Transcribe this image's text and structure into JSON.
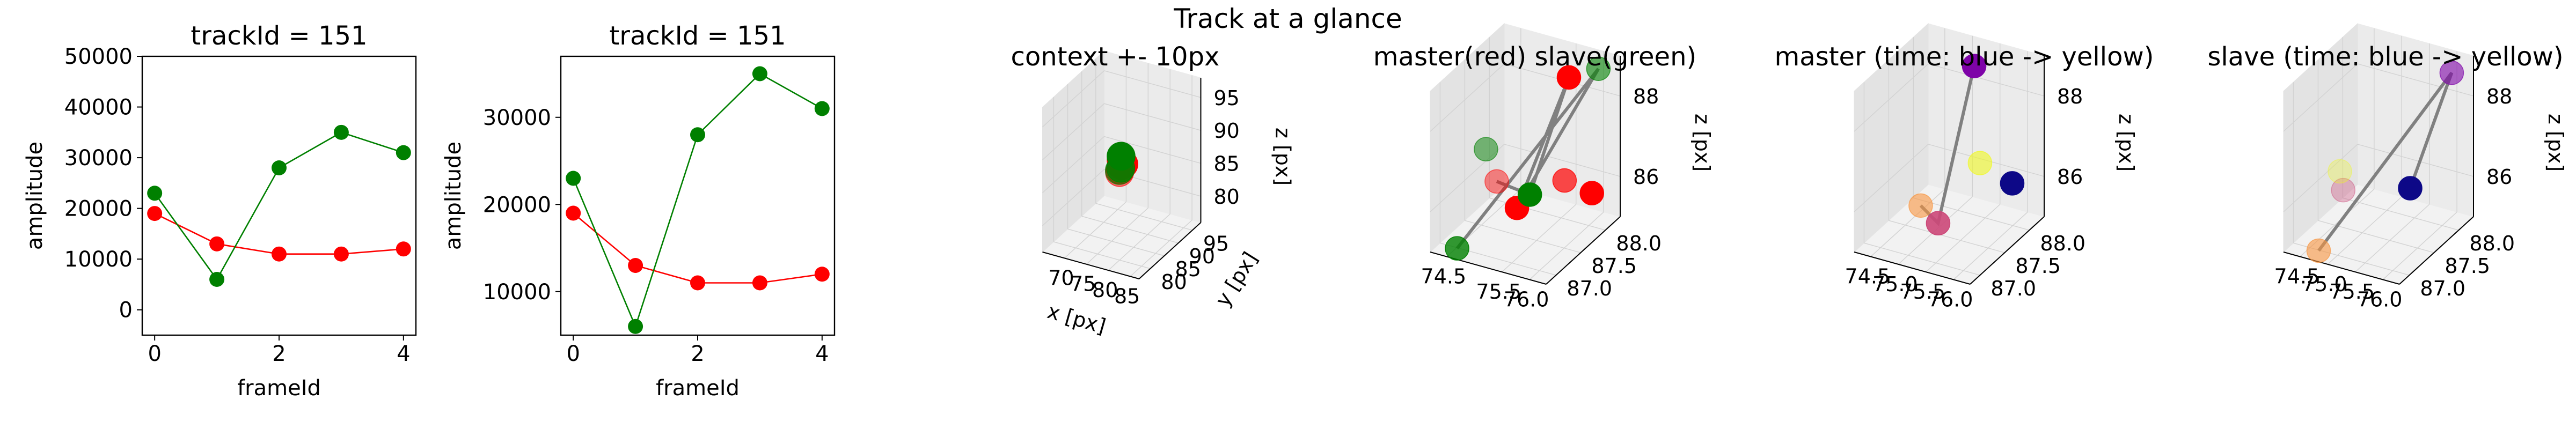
{
  "figure": {
    "suptitle": "Track at a glance"
  },
  "colors": {
    "master": "#ff0000",
    "slave": "#008000",
    "connector": "#808080",
    "pane": "#f2f2f2",
    "grid": "#d9d9d9"
  },
  "chart_data": [
    {
      "type": "line",
      "title": "trackId = 151",
      "xlabel": "frameId",
      "ylabel": "amplitude",
      "x": [
        0,
        1,
        2,
        3,
        4
      ],
      "xlim": [
        -0.2,
        4.2
      ],
      "ylim": [
        -5000,
        50000
      ],
      "xticks": [
        "0",
        "2",
        "4"
      ],
      "yticks": [
        "0",
        "10000",
        "20000",
        "30000",
        "40000",
        "50000"
      ],
      "series": [
        {
          "color": "#ff0000",
          "values": [
            19000,
            13000,
            11000,
            11000,
            12000
          ]
        },
        {
          "color": "#008000",
          "values": [
            23000,
            6000,
            28000,
            35000,
            31000
          ]
        }
      ]
    },
    {
      "type": "line",
      "title": "trackId = 151",
      "xlabel": "frameId",
      "ylabel": "amplitude",
      "x": [
        0,
        1,
        2,
        3,
        4
      ],
      "xlim": [
        -0.2,
        4.2
      ],
      "ylim": [
        5000,
        37000
      ],
      "xticks": [
        "0",
        "2",
        "4"
      ],
      "yticks": [
        "10000",
        "20000",
        "30000"
      ],
      "series": [
        {
          "color": "#ff0000",
          "values": [
            19000,
            13000,
            11000,
            11000,
            12000
          ]
        },
        {
          "color": "#008000",
          "values": [
            23000,
            6000,
            28000,
            35000,
            31000
          ]
        }
      ]
    },
    {
      "type": "scatter",
      "projection": "3d",
      "title": "context +- 10px",
      "xlabel": "x [px]",
      "ylabel": "y [px]",
      "zlabel": "z [px]",
      "xlim": [
        65,
        87
      ],
      "ylim": [
        76,
        98
      ],
      "zlim": [
        76,
        98
      ],
      "xticks": [
        70,
        75,
        80,
        85
      ],
      "yticks": [
        80,
        85,
        90,
        95
      ],
      "zticks": [
        80,
        85,
        90,
        95
      ],
      "points": [
        {
          "x": 76.2,
          "y": 86.5,
          "z": 88.0,
          "color": "#ff0000",
          "alpha": 1.0
        },
        {
          "x": 76.5,
          "y": 87.0,
          "z": 87.2,
          "color": "#ff0000",
          "alpha": 1.0
        },
        {
          "x": 75.8,
          "y": 87.2,
          "z": 86.8,
          "color": "#ff0000",
          "alpha": 0.85
        },
        {
          "x": 75.5,
          "y": 87.3,
          "z": 86.0,
          "color": "#ff0000",
          "alpha": 0.7
        },
        {
          "x": 75.2,
          "y": 87.5,
          "z": 85.5,
          "color": "#ff0000",
          "alpha": 0.55
        },
        {
          "x": 76.0,
          "y": 86.8,
          "z": 88.4,
          "color": "#008000",
          "alpha": 1.0
        },
        {
          "x": 75.6,
          "y": 87.3,
          "z": 86.3,
          "color": "#008000",
          "alpha": 0.8
        },
        {
          "x": 74.9,
          "y": 87.9,
          "z": 85.6,
          "color": "#008000",
          "alpha": 0.6
        }
      ],
      "path": []
    },
    {
      "type": "scatter",
      "projection": "3d",
      "title": "master(red) slave(green)",
      "zlabel": "z [px]",
      "xlim": [
        74.2,
        76.3
      ],
      "ylim": [
        86.8,
        88.3
      ],
      "zlim": [
        85.0,
        89.0
      ],
      "xticks": [
        74.5,
        75.5,
        76.0
      ],
      "xticklabels": [
        "74.5",
        "75.5",
        "76.0"
      ],
      "yticks": [
        87.0,
        87.5,
        88.0
      ],
      "yticklabels": [
        "87.0",
        "87.5",
        "88.0"
      ],
      "zticks": [
        86,
        88
      ],
      "zticklabels": [
        "86",
        "88"
      ],
      "points": [
        {
          "x": 75.55,
          "y": 88.1,
          "z": 88.4,
          "color": "#ff0000",
          "alpha": 1.0
        },
        {
          "x": 76.1,
          "y": 87.95,
          "z": 85.9,
          "color": "#ff0000",
          "alpha": 1.0
        },
        {
          "x": 75.65,
          "y": 87.9,
          "z": 86.1,
          "color": "#ff0000",
          "alpha": 0.7
        },
        {
          "x": 75.1,
          "y": 87.55,
          "z": 85.6,
          "color": "#ff0000",
          "alpha": 1.0
        },
        {
          "x": 74.6,
          "y": 87.7,
          "z": 85.9,
          "color": "#ff0000",
          "alpha": 0.45
        },
        {
          "x": 75.95,
          "y": 88.25,
          "z": 88.6,
          "color": "#008000",
          "alpha": 0.6
        },
        {
          "x": 75.2,
          "y": 87.7,
          "z": 85.8,
          "color": "#008000",
          "alpha": 1.0
        },
        {
          "x": 74.45,
          "y": 87.65,
          "z": 86.7,
          "color": "#008000",
          "alpha": 0.5
        },
        {
          "x": 74.15,
          "y": 87.4,
          "z": 84.4,
          "color": "#008000",
          "alpha": 0.8
        }
      ],
      "path": [
        {
          "x": 74.6,
          "y": 87.7,
          "z": 85.9
        },
        {
          "x": 75.2,
          "y": 87.7,
          "z": 85.8
        },
        {
          "x": 75.55,
          "y": 88.1,
          "z": 88.4
        },
        {
          "x": 75.1,
          "y": 87.55,
          "z": 85.6
        },
        {
          "x": 75.95,
          "y": 88.25,
          "z": 88.6
        },
        {
          "x": 74.15,
          "y": 87.4,
          "z": 84.4
        }
      ]
    },
    {
      "type": "scatter",
      "projection": "3d",
      "title": "master (time: blue -> yellow)",
      "zlabel": "z [px]",
      "xlim": [
        74.2,
        76.3
      ],
      "ylim": [
        86.8,
        88.3
      ],
      "zlim": [
        85.0,
        89.0
      ],
      "xticks": [
        74.5,
        75.0,
        75.5,
        76.0
      ],
      "xticklabels": [
        "74.5",
        "75.0",
        "75.5",
        "76.0"
      ],
      "yticks": [
        87.0,
        87.5,
        88.0
      ],
      "yticklabels": [
        "87.0",
        "87.5",
        "88.0"
      ],
      "zticks": [
        86,
        88
      ],
      "zticklabels": [
        "86",
        "88"
      ],
      "points": [
        {
          "x": 75.9,
          "y": 88.1,
          "z": 85.9,
          "color": "#0d0887",
          "alpha": 1.0
        },
        {
          "x": 75.3,
          "y": 88.0,
          "z": 88.7,
          "color": "#7e03a8",
          "alpha": 1.0
        },
        {
          "x": 75.05,
          "y": 87.55,
          "z": 85.2,
          "color": "#cc4778",
          "alpha": 0.9
        },
        {
          "x": 74.6,
          "y": 87.7,
          "z": 85.3,
          "color": "#f89540",
          "alpha": 0.6
        },
        {
          "x": 75.45,
          "y": 87.95,
          "z": 86.4,
          "color": "#f0f921",
          "alpha": 0.6
        }
      ],
      "path": [
        {
          "x": 74.6,
          "y": 87.7,
          "z": 85.3
        },
        {
          "x": 75.05,
          "y": 87.55,
          "z": 85.2
        },
        {
          "x": 75.3,
          "y": 88.0,
          "z": 88.7
        },
        {
          "x": 75.05,
          "y": 87.55,
          "z": 85.2
        }
      ]
    },
    {
      "type": "scatter",
      "projection": "3d",
      "title": "slave (time: blue -> yellow)",
      "zlabel": "z [px]",
      "xlim": [
        74.2,
        76.3
      ],
      "ylim": [
        86.8,
        88.3
      ],
      "zlim": [
        85.0,
        89.0
      ],
      "xticks": [
        74.5,
        75.0,
        75.5,
        76.0
      ],
      "xticklabels": [
        "74.5",
        "75.0",
        "75.5",
        "76.0"
      ],
      "yticks": [
        87.0,
        87.5,
        88.0
      ],
      "yticklabels": [
        "87.0",
        "87.5",
        "88.0"
      ],
      "zticks": [
        86,
        88
      ],
      "zticklabels": [
        "86",
        "88"
      ],
      "points": [
        {
          "x": 75.6,
          "y": 87.8,
          "z": 86.0,
          "color": "#0d0887",
          "alpha": 1.0
        },
        {
          "x": 75.95,
          "y": 88.25,
          "z": 88.5,
          "color": "#7e03a8",
          "alpha": 0.6
        },
        {
          "x": 74.7,
          "y": 87.45,
          "z": 86.0,
          "color": "#cc4778",
          "alpha": 0.35
        },
        {
          "x": 74.3,
          "y": 87.4,
          "z": 84.4,
          "color": "#f89540",
          "alpha": 0.6
        },
        {
          "x": 74.55,
          "y": 87.55,
          "z": 86.3,
          "color": "#f0f921",
          "alpha": 0.3
        }
      ],
      "path": [
        {
          "x": 74.3,
          "y": 87.4,
          "z": 84.4
        },
        {
          "x": 75.95,
          "y": 88.25,
          "z": 88.5
        },
        {
          "x": 75.6,
          "y": 87.8,
          "z": 86.0
        }
      ]
    }
  ]
}
